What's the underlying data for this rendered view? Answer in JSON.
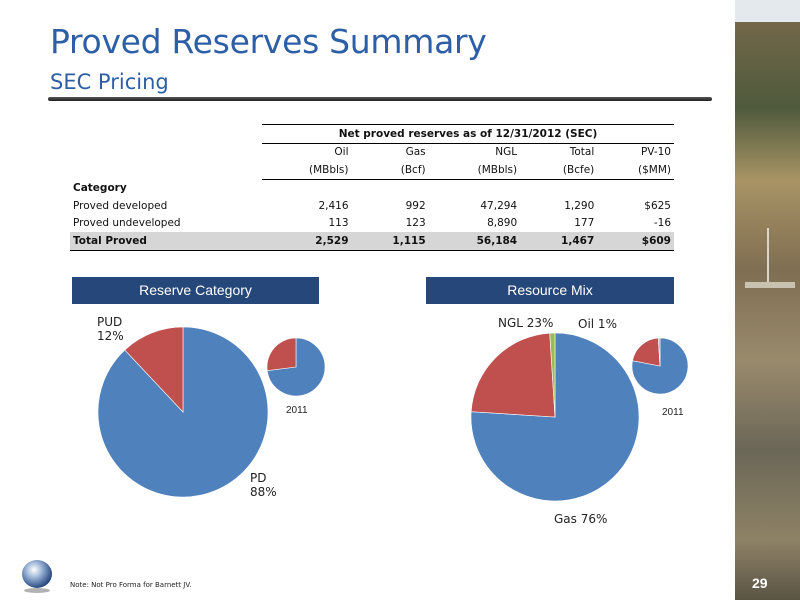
{
  "header": {
    "title": "Proved Reserves Summary",
    "subtitle": "SEC Pricing"
  },
  "table": {
    "span_header": "Net proved reserves as of 12/31/2012 (SEC)",
    "columns": [
      "Oil",
      "Gas",
      "NGL",
      "Total",
      "PV-10"
    ],
    "units": [
      "(MBbls)",
      "(Bcf)",
      "(MBbls)",
      "(Bcfe)",
      "($MM)"
    ],
    "category_label": "Category",
    "rows": [
      {
        "label": "Proved developed",
        "values": [
          "2,416",
          "992",
          "47,294",
          "1,290",
          "$625"
        ]
      },
      {
        "label": "Proved undeveloped",
        "values": [
          "113",
          "123",
          "8,890",
          "177",
          "-16"
        ]
      }
    ],
    "total": {
      "label": "Total Proved",
      "values": [
        "2,529",
        "1,115",
        "56,184",
        "1,467",
        "$609"
      ]
    }
  },
  "charts": {
    "reserve_band": "Reserve Category",
    "mix_band": "Resource Mix",
    "year_label_left": "2011",
    "year_label_right": "2011",
    "labels": {
      "pud_name": "PUD",
      "pud_pct": "12%",
      "pd_name": "PD",
      "pd_pct": "88%",
      "ngl": "NGL 23%",
      "oil": "Oil 1%",
      "gas": "Gas 76%"
    },
    "colors": {
      "blue": "#4f81bd",
      "red": "#c0504d",
      "olive": "#9bbb59"
    }
  },
  "chart_data": [
    {
      "type": "pie",
      "name": "Reserve Category",
      "categories": [
        "PD",
        "PUD"
      ],
      "values": [
        88,
        12
      ]
    },
    {
      "type": "pie",
      "name": "Reserve Category 2011",
      "categories": [
        "PD",
        "PUD"
      ],
      "values": [
        73,
        27
      ]
    },
    {
      "type": "pie",
      "name": "Resource Mix",
      "categories": [
        "Gas",
        "NGL",
        "Oil"
      ],
      "values": [
        76,
        23,
        1
      ]
    },
    {
      "type": "pie",
      "name": "Resource Mix 2011",
      "categories": [
        "Gas",
        "NGL",
        "Oil"
      ],
      "values": [
        78,
        21,
        1
      ]
    }
  ],
  "footer": {
    "note": "Note: Not Pro Forma for Barnett JV.",
    "page": "29"
  }
}
